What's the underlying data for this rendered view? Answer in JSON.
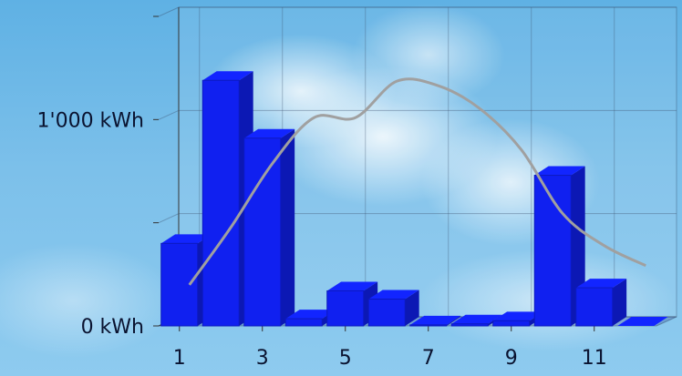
{
  "chart_data": {
    "type": "bar",
    "x": [
      1,
      2,
      3,
      4,
      5,
      6,
      7,
      8,
      9,
      10,
      11,
      12
    ],
    "xlim": [
      0.5,
      12.5
    ],
    "xticks": [
      1,
      3,
      5,
      7,
      9,
      11
    ],
    "ylim": [
      0,
      1500
    ],
    "yticks": [
      {
        "value": 0,
        "label": "0 kWh"
      },
      {
        "value": 1000,
        "label": "1'000 kWh"
      }
    ],
    "minor_yticks": [
      500,
      1500
    ],
    "grid": true,
    "series": [
      {
        "type": "bar",
        "color": "#1020f0",
        "values": [
          400,
          1190,
          910,
          35,
          170,
          130,
          5,
          10,
          25,
          730,
          185,
          0
        ]
      },
      {
        "type": "line",
        "color": "#a0a0a0",
        "values": [
          177,
          456,
          765,
          987,
          987,
          1164,
          1142,
          1031,
          832,
          522,
          367,
          270
        ]
      }
    ]
  }
}
